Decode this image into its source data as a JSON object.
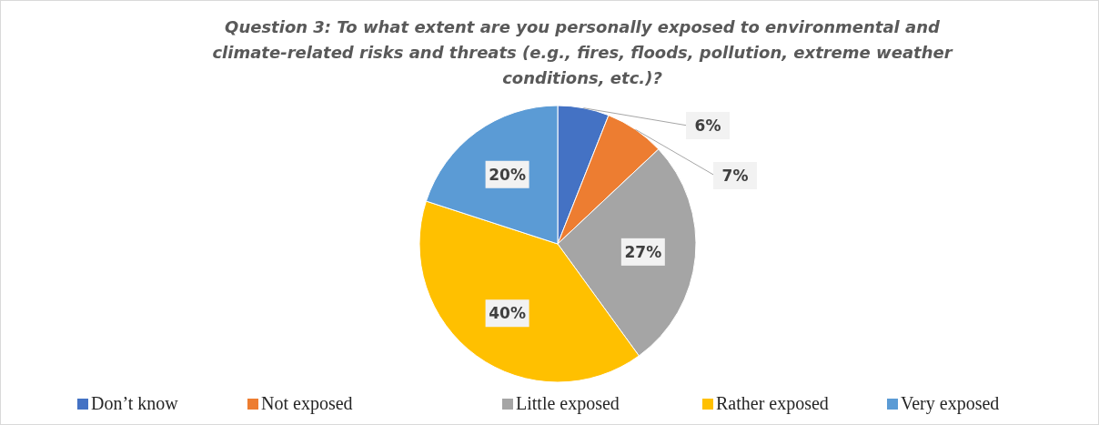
{
  "chart_data": {
    "type": "pie",
    "title": "Question 3: To what extent are you personally exposed to environmental and climate-related risks and threats (e.g., fires, floods, pollution, extreme weather conditions, etc.)?",
    "categories": [
      "Don’t know",
      "Not exposed",
      "Little exposed",
      "Rather exposed",
      "Very exposed"
    ],
    "values": [
      6,
      7,
      27,
      40,
      20
    ],
    "colors": [
      "#4472c4",
      "#ed7d31",
      "#a5a5a5",
      "#ffc000",
      "#5b9bd5"
    ],
    "value_labels": [
      "6%",
      "7%",
      "27%",
      "40%",
      "20%"
    ],
    "legend": "bottom"
  }
}
